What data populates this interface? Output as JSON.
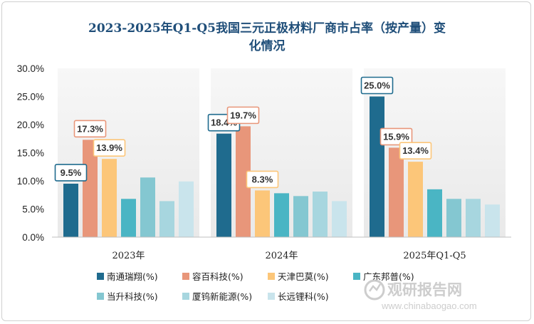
{
  "chart_data": {
    "type": "bar",
    "title_lines": [
      "2023-2025年Q1-Q5我国三元正极材料厂商市占率（按产量）变",
      "化情况"
    ],
    "categories": [
      "2023年",
      "2024年",
      "2025年Q1-Q5"
    ],
    "ylim": [
      0,
      30
    ],
    "yticks": [
      0,
      5,
      10,
      15,
      20,
      25,
      30
    ],
    "ytick_labels": [
      "0.0%",
      "5.0%",
      "10.0%",
      "15.0%",
      "20.0%",
      "25.0%",
      "30.0%"
    ],
    "grid": false,
    "legend_position": "bottom",
    "series": [
      {
        "name": "南通瑞翔(%)",
        "color": "#1f6b8e",
        "values": [
          9.5,
          18.4,
          25.0
        ],
        "labels": [
          "9.5%",
          "18.4%",
          "25.0%"
        ]
      },
      {
        "name": "容百科技(%)",
        "color": "#e8967a",
        "values": [
          17.3,
          19.7,
          15.9
        ],
        "labels": [
          "17.3%",
          "19.7%",
          "15.9%"
        ]
      },
      {
        "name": "天津巴莫(%)",
        "color": "#fcc679",
        "values": [
          13.9,
          8.3,
          13.4
        ],
        "labels": [
          "13.9%",
          "8.3%",
          "13.4%"
        ]
      },
      {
        "name": "广东邦普(%)",
        "color": "#4ab5c4",
        "values": [
          6.8,
          7.8,
          8.5
        ],
        "labels": null
      },
      {
        "name": "当升科技(%)",
        "color": "#84c7d1",
        "values": [
          10.6,
          7.3,
          6.8
        ],
        "labels": null
      },
      {
        "name": "厦钨新能源(%)",
        "color": "#a7d6df",
        "values": [
          6.4,
          8.1,
          6.8
        ],
        "labels": null
      },
      {
        "name": "长远锂科(%)",
        "color": "#c9e4ec",
        "values": [
          9.9,
          6.4,
          5.8
        ],
        "labels": null
      }
    ],
    "label_border_colors": [
      "#1f6b8e",
      "#e8967a",
      "#fcc679"
    ]
  },
  "watermark": {
    "brand": "观研报告网",
    "url": "www.chinabaogao.com"
  }
}
